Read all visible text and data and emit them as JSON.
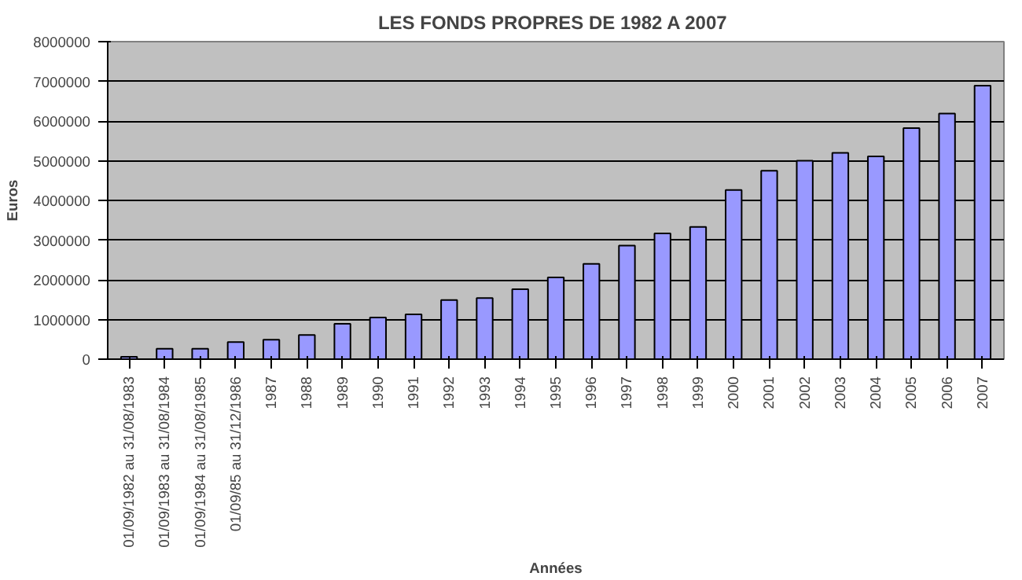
{
  "chart_data": {
    "type": "bar",
    "title": "LES FONDS PROPRES  DE 1982 A 2007",
    "xlabel": "Années",
    "ylabel": "Euros",
    "categories": [
      "01/09/1982 au 31/08/1983",
      "01/09/1983 au 31/08/1984",
      "01/09/1984 au 31/08/1985",
      "01/09/85 au 31/12/1986",
      "1987",
      "1988",
      "1989",
      "1990",
      "1991",
      "1992",
      "1993",
      "1994",
      "1995",
      "1996",
      "1997",
      "1998",
      "1999",
      "2000",
      "2001",
      "2002",
      "2003",
      "2004",
      "2005",
      "2006",
      "2007"
    ],
    "values": [
      60000,
      260000,
      260000,
      430000,
      490000,
      610000,
      890000,
      1050000,
      1130000,
      1490000,
      1540000,
      1760000,
      2060000,
      2400000,
      2860000,
      3170000,
      3330000,
      4260000,
      4750000,
      5000000,
      5200000,
      5110000,
      5820000,
      6190000,
      6890000
    ],
    "color": "#9999ff",
    "ylim": [
      0,
      8000000
    ],
    "yticks": [
      0,
      1000000,
      2000000,
      3000000,
      4000000,
      5000000,
      6000000,
      7000000,
      8000000
    ],
    "grid": "y"
  }
}
